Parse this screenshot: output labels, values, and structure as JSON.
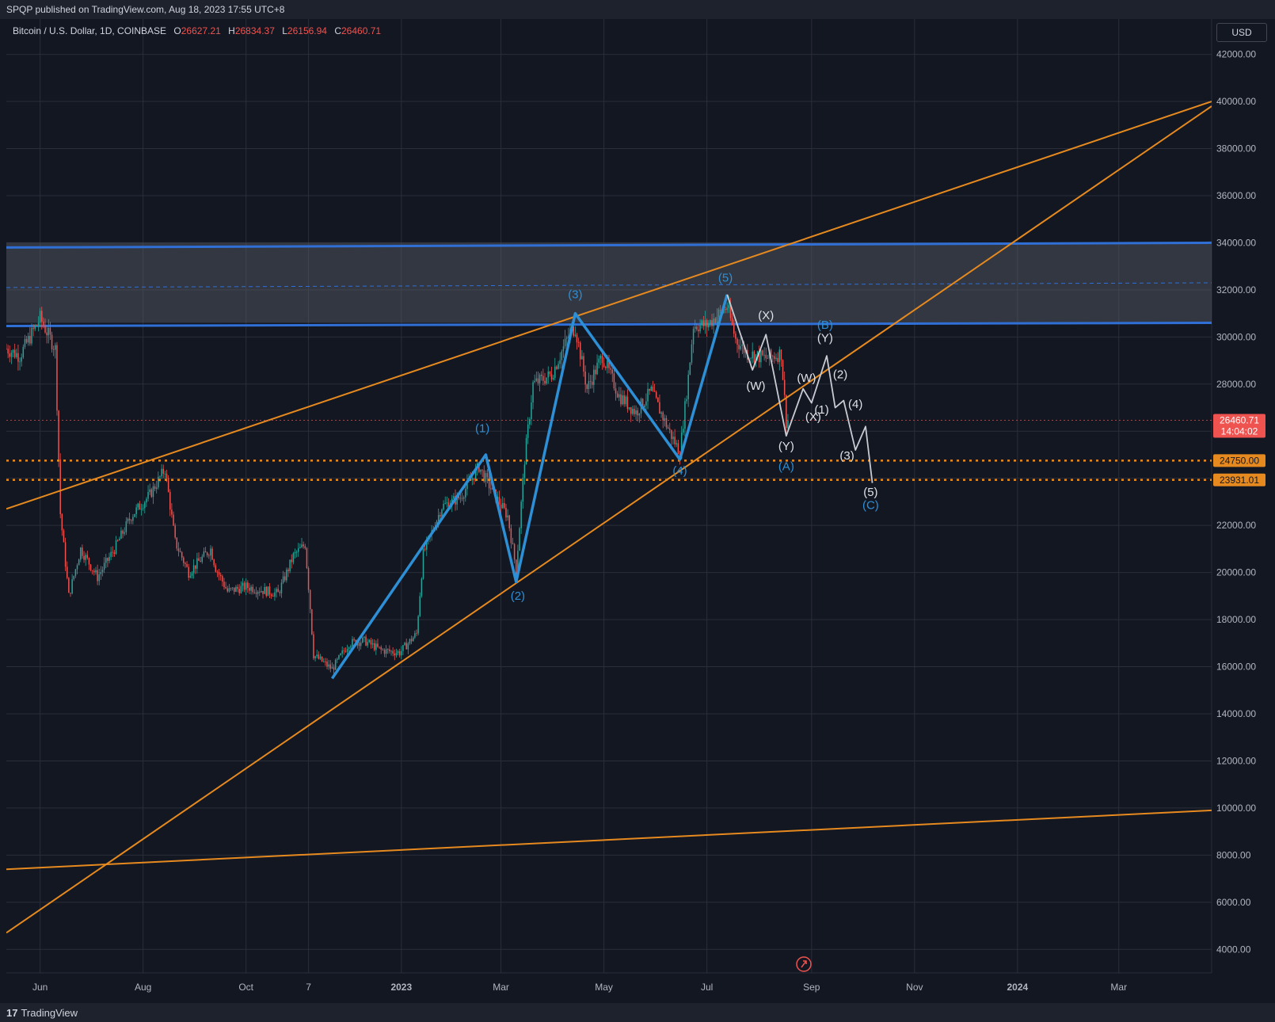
{
  "header": {
    "published": "SPQP published on TradingView.com, Aug 18, 2023 17:55 UTC+8"
  },
  "legend": {
    "symbol": "Bitcoin / U.S. Dollar, 1D, COINBASE",
    "o_key": "O",
    "o_val": "26627.21",
    "h_key": "H",
    "h_val": "26834.37",
    "l_key": "L",
    "l_val": "26156.94",
    "c_key": "C",
    "c_val": "26460.71"
  },
  "currency": "USD",
  "footer": {
    "logo_mark": "17",
    "logo_text": "TradingView"
  },
  "colors": {
    "background": "#131722",
    "grid": "#2a2e39",
    "orange": "#e68a1f",
    "blue": "#2f6fd6",
    "wave_blue": "#2d8fd5",
    "wave_white": "#c9cbd2",
    "up": "#26a69a",
    "down": "#ef5350"
  },
  "chart_data": {
    "type": "line",
    "title": "",
    "ylim": [
      3000,
      43500
    ],
    "y_ticks": [
      "42000.00",
      "40000.00",
      "38000.00",
      "36000.00",
      "34000.00",
      "32000.00",
      "30000.00",
      "28000.00",
      "26000.00",
      "24000.00",
      "22000.00",
      "20000.00",
      "18000.00",
      "16000.00",
      "14000.00",
      "12000.00",
      "10000.00",
      "8000.00",
      "6000.00",
      "4000.00"
    ],
    "x_ticks": [
      "Jun",
      "Aug",
      "Oct",
      "7",
      "2023",
      "Mar",
      "May",
      "Jul",
      "Sep",
      "Nov",
      "2024",
      "Mar"
    ],
    "xlim": [
      "2022-05-12",
      "2024-04-25"
    ],
    "last_price": {
      "value": "26460.71",
      "countdown": "14:04:02"
    },
    "horizontal_levels": [
      {
        "value": "24750.00",
        "style": "dotted-orange"
      },
      {
        "value": "23931.01",
        "style": "dotted-orange"
      }
    ],
    "resistance_zone": {
      "low": 30600,
      "high": 34000,
      "mid": 32300
    },
    "trend_lines": [
      {
        "name": "",
        "points": [
          [
            "2022-05-12",
            22700
          ],
          [
            "2024-04-25",
            40000
          ]
        ]
      },
      {
        "name": "",
        "points": [
          [
            "2022-05-12",
            4700
          ],
          [
            "2024-04-25",
            39800
          ]
        ]
      },
      {
        "name": "",
        "points": [
          [
            "2022-05-12",
            7400
          ],
          [
            "2024-04-25",
            9900
          ]
        ]
      }
    ],
    "series": [
      {
        "name": "",
        "values": [
          {
            "x": "2022-11-21",
            "y": 15500
          },
          {
            "x": "2023-02-20",
            "y": 25000
          },
          {
            "x": "2023-03-10",
            "y": 19600
          },
          {
            "x": "2023-04-14",
            "y": 31000
          },
          {
            "x": "2023-06-15",
            "y": 24800
          },
          {
            "x": "2023-07-13",
            "y": 31800
          }
        ]
      },
      {
        "name": "",
        "values": [
          {
            "x": "2023-07-13",
            "y": 31800
          },
          {
            "x": "2023-07-28",
            "y": 28600
          },
          {
            "x": "2023-08-05",
            "y": 30100
          },
          {
            "x": "2023-08-17",
            "y": 25800
          },
          {
            "x": "2023-08-27",
            "y": 27800
          },
          {
            "x": "2023-09-01",
            "y": 27200
          },
          {
            "x": "2023-09-10",
            "y": 29200
          },
          {
            "x": "2023-09-15",
            "y": 27000
          },
          {
            "x": "2023-09-20",
            "y": 27300
          },
          {
            "x": "2023-09-27",
            "y": 25200
          },
          {
            "x": "2023-10-03",
            "y": 26200
          },
          {
            "x": "2023-10-07",
            "y": 23800
          }
        ]
      }
    ],
    "wave_labels": [
      {
        "text": "(1)",
        "x": "2023-02-18",
        "y": 25950,
        "color": "blue"
      },
      {
        "text": "(2)",
        "x": "2023-03-11",
        "y": 18850,
        "color": "blue"
      },
      {
        "text": "(3)",
        "x": "2023-04-14",
        "y": 31650,
        "color": "blue"
      },
      {
        "text": "(4)",
        "x": "2023-06-15",
        "y": 24150,
        "color": "blue"
      },
      {
        "text": "(5)",
        "x": "2023-07-12",
        "y": 32350,
        "color": "blue"
      },
      {
        "text": "(X)",
        "x": "2023-08-05",
        "y": 30750,
        "color": "white"
      },
      {
        "text": "(W)",
        "x": "2023-07-30",
        "y": 27750,
        "color": "white"
      },
      {
        "text": "(Y)",
        "x": "2023-08-17",
        "y": 25200,
        "color": "white"
      },
      {
        "text": "(A)",
        "x": "2023-08-17",
        "y": 24350,
        "color": "blue"
      },
      {
        "text": "(W)",
        "x": "2023-08-29",
        "y": 28100,
        "color": "white"
      },
      {
        "text": "(B)",
        "x": "2023-09-09",
        "y": 30350,
        "color": "blue"
      },
      {
        "text": "(Y)",
        "x": "2023-09-09",
        "y": 29800,
        "color": "white"
      },
      {
        "text": "(X)",
        "x": "2023-09-02",
        "y": 26450,
        "color": "white"
      },
      {
        "text": "(1)",
        "x": "2023-09-07",
        "y": 26750,
        "color": "white"
      },
      {
        "text": "(2)",
        "x": "2023-09-18",
        "y": 28250,
        "color": "white"
      },
      {
        "text": "(4)",
        "x": "2023-09-27",
        "y": 26980,
        "color": "white"
      },
      {
        "text": "(3)",
        "x": "2023-09-22",
        "y": 24800,
        "color": "white"
      },
      {
        "text": "(5)",
        "x": "2023-10-06",
        "y": 23250,
        "color": "white"
      },
      {
        "text": "(C)",
        "x": "2023-10-06",
        "y": 22700,
        "color": "blue"
      }
    ],
    "price_path": [
      [
        "2022-05-12",
        29500
      ],
      [
        "2022-05-20",
        29200
      ],
      [
        "2022-06-01",
        30800
      ],
      [
        "2022-06-10",
        29500
      ],
      [
        "2022-06-13",
        22500
      ],
      [
        "2022-06-18",
        19000
      ],
      [
        "2022-06-25",
        21000
      ],
      [
        "2022-07-05",
        19800
      ],
      [
        "2022-07-15",
        21000
      ],
      [
        "2022-07-25",
        22400
      ],
      [
        "2022-08-05",
        23300
      ],
      [
        "2022-08-14",
        24400
      ],
      [
        "2022-08-20",
        21300
      ],
      [
        "2022-08-28",
        20000
      ],
      [
        "2022-09-10",
        21000
      ],
      [
        "2022-09-13",
        20200
      ],
      [
        "2022-09-20",
        19200
      ],
      [
        "2022-10-01",
        19400
      ],
      [
        "2022-10-20",
        19100
      ],
      [
        "2022-10-29",
        20700
      ],
      [
        "2022-11-05",
        21200
      ],
      [
        "2022-11-08",
        18500
      ],
      [
        "2022-11-10",
        16500
      ],
      [
        "2022-11-21",
        15900
      ],
      [
        "2022-12-01",
        17000
      ],
      [
        "2022-12-10",
        17100
      ],
      [
        "2022-12-20",
        16700
      ],
      [
        "2022-12-31",
        16600
      ],
      [
        "2023-01-10",
        17400
      ],
      [
        "2023-01-14",
        20800
      ],
      [
        "2023-01-25",
        22800
      ],
      [
        "2023-02-05",
        23200
      ],
      [
        "2023-02-16",
        24500
      ],
      [
        "2023-02-25",
        23300
      ],
      [
        "2023-03-05",
        22400
      ],
      [
        "2023-03-10",
        20100
      ],
      [
        "2023-03-15",
        24800
      ],
      [
        "2023-03-20",
        28000
      ],
      [
        "2023-03-31",
        28400
      ],
      [
        "2023-04-11",
        30200
      ],
      [
        "2023-04-14",
        30400
      ],
      [
        "2023-04-21",
        27800
      ],
      [
        "2023-04-30",
        29200
      ],
      [
        "2023-05-10",
        27500
      ],
      [
        "2023-05-20",
        26800
      ],
      [
        "2023-05-29",
        27700
      ],
      [
        "2023-06-10",
        25800
      ],
      [
        "2023-06-15",
        25100
      ],
      [
        "2023-06-20",
        28300
      ],
      [
        "2023-06-23",
        30500
      ],
      [
        "2023-07-01",
        30500
      ],
      [
        "2023-07-13",
        31300
      ],
      [
        "2023-07-18",
        29900
      ],
      [
        "2023-07-25",
        29300
      ],
      [
        "2023-08-05",
        29100
      ],
      [
        "2023-08-14",
        29300
      ],
      [
        "2023-08-17",
        26400
      ],
      [
        "2023-08-18",
        26460
      ]
    ]
  }
}
